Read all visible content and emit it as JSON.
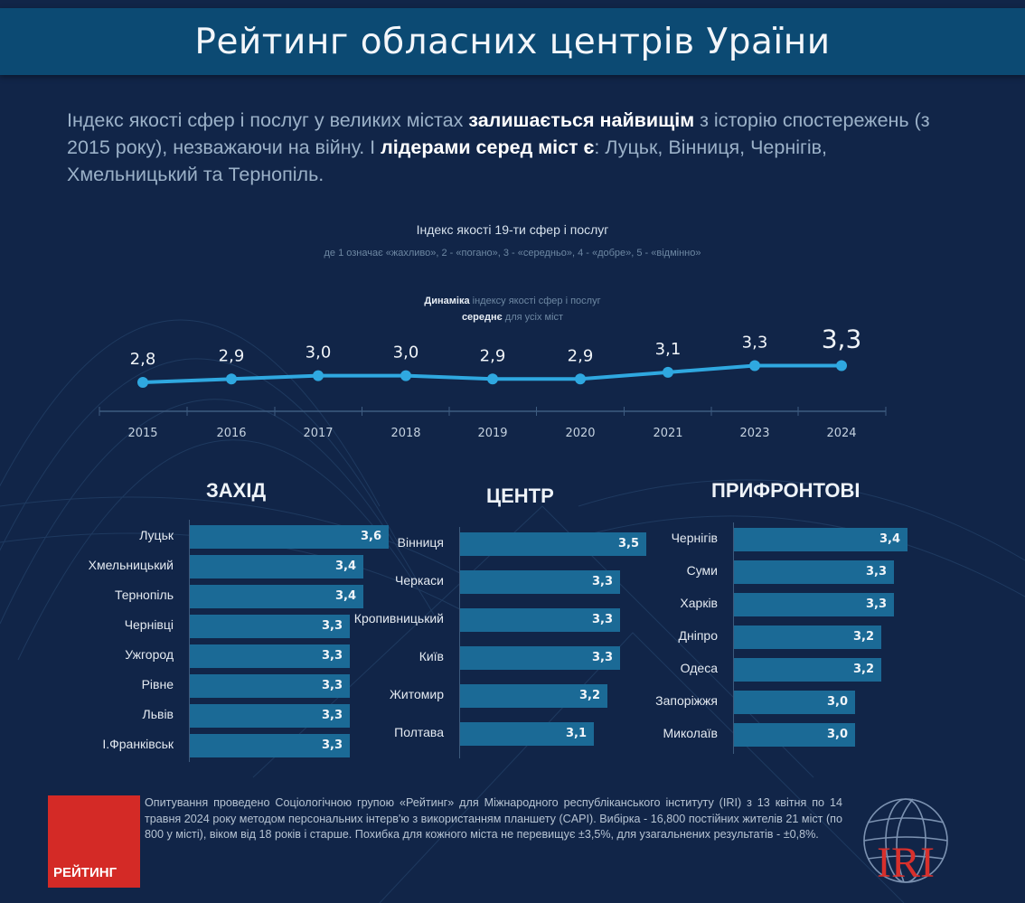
{
  "header": {
    "title": "Рейтинг обласних центрів Ураїни"
  },
  "intro": {
    "part1": "Індекс якості  сфер і послуг у великих містах ",
    "bold1": "залишається найвищім",
    "part2": " з історію спостережень (з 2015 року), незважаючи на війну. І ",
    "bold2": "лідерами серед міст є",
    "part3": ": Луцьк, Вінниця, Чернігів, Хмельницький та Тернопіль."
  },
  "index_block": {
    "title": "Індекс якості 19-ти сфер і послуг",
    "scale_note": "де 1 означає «жахливо»,  2 - «погано», 3 - «середньо», 4 - «добре», 5 - «відмінно»",
    "dynamics_bold": "Динаміка",
    "dynamics_rest": " індексу якості сфер і послуг",
    "average_bold": "середнє",
    "average_rest": " для усіх міст"
  },
  "colors": {
    "background": "#112548",
    "title_bar": "#0c4a73",
    "line": "#2fa8e0",
    "bar": "#1b6a96",
    "logo_red": "#d42a26",
    "iri_red": "#d8302c"
  },
  "chart_data": [
    {
      "type": "line",
      "title": "Динаміка індексу якості сфер і послуг середнє для усіх міст",
      "x": [
        "2015",
        "2016",
        "2017",
        "2018",
        "2019",
        "2020",
        "2021",
        "2023",
        "2024"
      ],
      "values": [
        2.8,
        2.9,
        3.0,
        3.0,
        2.9,
        2.9,
        3.1,
        3.3,
        3.3
      ],
      "labels": [
        "2,8",
        "2,9",
        "3,0",
        "3,0",
        "2,9",
        "2,9",
        "3,1",
        "3,3",
        "3,3"
      ],
      "xlabel": "",
      "ylabel": "",
      "grid": false,
      "legend": "none"
    },
    {
      "type": "bar",
      "orientation": "horizontal",
      "title": "ЗАХІД",
      "categories": [
        "Луцьк",
        "Хмельницький",
        "Тернопіль",
        "Чернівці",
        "Ужгород",
        "Рівне",
        "Львів",
        "І.Франківськ"
      ],
      "values": [
        3.6,
        3.4,
        3.4,
        3.3,
        3.3,
        3.3,
        3.3,
        3.3
      ],
      "labels": [
        "3,6",
        "3,4",
        "3,4",
        "3,3",
        "3,3",
        "3,3",
        "3,3",
        "3,3"
      ]
    },
    {
      "type": "bar",
      "orientation": "horizontal",
      "title": "ЦЕНТР",
      "categories": [
        "Вінниця",
        "Черкаси",
        "Кропивницький",
        "Київ",
        "Житомир",
        "Полтава"
      ],
      "values": [
        3.5,
        3.3,
        3.3,
        3.3,
        3.2,
        3.1
      ],
      "labels": [
        "3,5",
        "3,3",
        "3,3",
        "3,3",
        "3,2",
        "3,1"
      ]
    },
    {
      "type": "bar",
      "orientation": "horizontal",
      "title": "ПРИФРОНТОВІ",
      "categories": [
        "Чернігів",
        "Суми",
        "Харків",
        "Дніпро",
        "Одеса",
        "Запоріжжя",
        "Миколаїв"
      ],
      "values": [
        3.4,
        3.3,
        3.3,
        3.2,
        3.2,
        3.0,
        3.0
      ],
      "labels": [
        "3,4",
        "3,3",
        "3,3",
        "3,2",
        "3,2",
        "3,0",
        "3,0"
      ]
    }
  ],
  "footer": {
    "logo_label": "РЕЙТИНГ",
    "text": "Опитування проведено Соціологічною групою «Рейтинг» для Міжнародного республіканського інституту (IRI) з 13 квітня по 14 травня 2024 року методом персональних інтерв'ю з використанням планшету (CAPI). Вибірка - 16,800 постійних жителів 21 міст (по 800 у місті), віком від 18 років і старше. Похибка для кожного міста не перевищує ±3,5%, для узагальнених результатів - ±0,8%.",
    "iri_label": "IRI"
  }
}
